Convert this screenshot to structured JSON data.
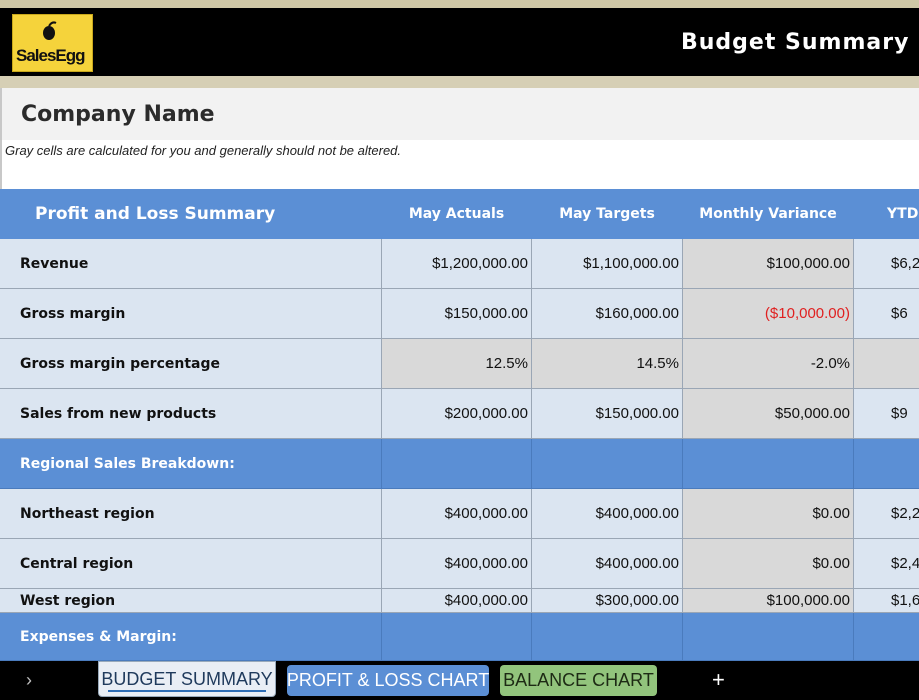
{
  "banner": {
    "logo_text": "SalesEgg",
    "title": "Budget Summary R"
  },
  "company": {
    "name": "Company Name",
    "note": "Gray cells are calculated for you and generally should not be altered."
  },
  "table": {
    "header": [
      "Profit and Loss Summary",
      "May Actuals",
      "May Targets",
      "Monthly Variance",
      "YTD"
    ],
    "rows": [
      {
        "label": "Revenue",
        "actuals": "$1,200,000.00",
        "targets": "$1,100,000.00",
        "variance": "$100,000.00",
        "ytd": "$6,2"
      },
      {
        "label": "Gross margin",
        "actuals": "$150,000.00",
        "targets": "$160,000.00",
        "variance": "($10,000.00)",
        "ytd": "$6"
      },
      {
        "label": "Gross margin percentage",
        "actuals": "12.5%",
        "targets": "14.5%",
        "variance": "-2.0%",
        "ytd": ""
      },
      {
        "label": "Sales from new products",
        "actuals": "$200,000.00",
        "targets": "$150,000.00",
        "variance": "$50,000.00",
        "ytd": "$9"
      },
      {
        "label": "Regional Sales Breakdown:",
        "actuals": "",
        "targets": "",
        "variance": "",
        "ytd": ""
      },
      {
        "label": "Northeast region",
        "actuals": "$400,000.00",
        "targets": "$400,000.00",
        "variance": "$0.00",
        "ytd": "$2,2"
      },
      {
        "label": "Central region",
        "actuals": "$400,000.00",
        "targets": "$400,000.00",
        "variance": "$0.00",
        "ytd": "$2,4"
      },
      {
        "label": "West region",
        "actuals": "$400,000.00",
        "targets": "$300,000.00",
        "variance": "$100,000.00",
        "ytd": "$1,6"
      },
      {
        "label": "Expenses & Margin:",
        "actuals": "",
        "targets": "",
        "variance": "",
        "ytd": ""
      }
    ]
  },
  "tabs": {
    "prev_arrow": "›",
    "budget": "BUDGET SUMMARY",
    "pl": "PROFIT & LOSS CHART",
    "balance": "BALANCE CHART",
    "add": "+"
  },
  "colors": {
    "header_blue": "#5b8fd5",
    "data_blue": "#dbe5f1",
    "calc_gray": "#d9d9d9",
    "negative_red": "#e02020",
    "logo_yellow": "#f5d33b"
  }
}
